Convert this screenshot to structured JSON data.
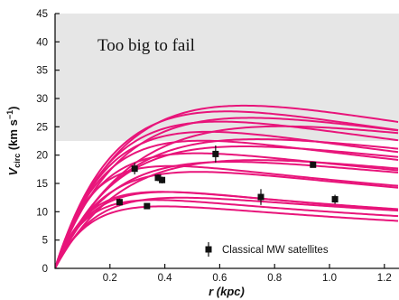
{
  "chart_data": {
    "type": "line",
    "xlabel": "r (kpc)",
    "ylabel_main": "V",
    "ylabel_sub": "circ",
    "ylabel_units": " (km s",
    "ylabel_sup": "−1",
    "ylabel_close": ")",
    "xlim": [
      0,
      1.25
    ],
    "ylim": [
      0,
      45
    ],
    "x_ticks": [
      0.2,
      0.4,
      0.6,
      0.8,
      1.0,
      1.2
    ],
    "x_tick_labels": [
      "0.2",
      "0.4",
      "0.6",
      "0.8",
      "1.0",
      "1.2"
    ],
    "y_ticks": [
      0,
      5,
      10,
      15,
      20,
      25,
      30,
      35,
      40,
      45
    ],
    "y_tick_labels": [
      "0",
      "5",
      "10",
      "15",
      "20",
      "25",
      "30",
      "35",
      "40",
      "45"
    ],
    "shaded_region": {
      "label": "Too big to fail",
      "y_min": 22.5,
      "y_max": 45
    },
    "grid": false,
    "curve_color": "#e8147a",
    "shade_color": "#e6e6e6",
    "marker_color": "#111111",
    "curve_model": {
      "form": "V(r) = vmax * (1 - exp(-r / rs)) / (1 + r / rd)"
    },
    "curves": [
      {
        "vmax": 46.5,
        "rs": 0.33,
        "rd": 1.65
      },
      {
        "vmax": 40.0,
        "rs": 0.26,
        "rd": 2.0
      },
      {
        "vmax": 38.8,
        "rs": 0.3,
        "rd": 2.2
      },
      {
        "vmax": 36.3,
        "rs": 0.24,
        "rd": 2.1
      },
      {
        "vmax": 37.5,
        "rs": 0.36,
        "rd": 2.4
      },
      {
        "vmax": 33.5,
        "rs": 0.22,
        "rd": 2.0
      },
      {
        "vmax": 33.2,
        "rs": 0.31,
        "rd": 2.3
      },
      {
        "vmax": 30.1,
        "rs": 0.2,
        "rd": 2.2
      },
      {
        "vmax": 29.8,
        "rs": 0.27,
        "rd": 2.5
      },
      {
        "vmax": 28.7,
        "rs": 0.32,
        "rd": 2.1
      },
      {
        "vmax": 26.0,
        "rs": 0.18,
        "rd": 2.5
      },
      {
        "vmax": 25.2,
        "rs": 0.24,
        "rd": 2.6
      },
      {
        "vmax": 23.2,
        "rs": 0.2,
        "rd": 2.0
      },
      {
        "vmax": 22.5,
        "rs": 0.14,
        "rd": 2.3
      },
      {
        "vmax": 17.9,
        "rs": 0.15,
        "rd": 1.7
      },
      {
        "vmax": 17.0,
        "rs": 0.13,
        "rd": 2.0
      },
      {
        "vmax": 16.0,
        "rs": 0.16,
        "rd": 2.2
      },
      {
        "vmax": 15.0,
        "rs": 0.12,
        "rd": 2.0
      },
      {
        "vmax": 14.2,
        "rs": 0.14,
        "rd": 1.8
      }
    ],
    "series": [
      {
        "name": "Classical MW satellites",
        "points": [
          {
            "x": 0.235,
            "y": 11.7,
            "yerr": 0.6
          },
          {
            "x": 0.29,
            "y": 17.6,
            "yerr": 1.0
          },
          {
            "x": 0.335,
            "y": 11.0,
            "yerr": 0.4
          },
          {
            "x": 0.375,
            "y": 16.0,
            "yerr": 0.6
          },
          {
            "x": 0.39,
            "y": 15.6,
            "yerr": 0.6
          },
          {
            "x": 0.585,
            "y": 20.2,
            "yerr": 1.5
          },
          {
            "x": 0.75,
            "y": 12.6,
            "yerr": 1.4
          },
          {
            "x": 0.94,
            "y": 18.3,
            "yerr": 0.2
          },
          {
            "x": 1.02,
            "y": 12.2,
            "yerr": 0.8
          }
        ]
      }
    ],
    "legend_placement": "bottom-center"
  }
}
